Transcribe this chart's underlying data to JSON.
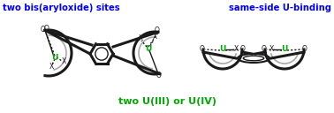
{
  "title_left": "two bis(aryloxide) sites",
  "title_right": "same-side U-binding",
  "bottom_text": "two U(III) or U(IV)",
  "title_color": "#0000FF",
  "bottom_color": "#00AA00",
  "U_color": "#00AA00",
  "bg_color": "#FFFFFF",
  "fig_width": 3.78,
  "fig_height": 1.28,
  "dpi": 100
}
